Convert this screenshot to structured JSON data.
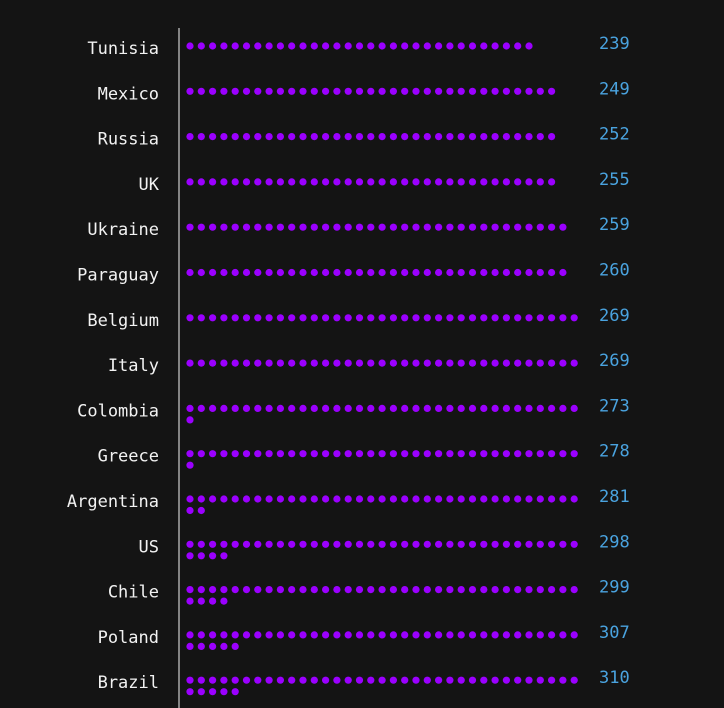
{
  "chart_data": {
    "type": "dot-bar",
    "categories": [
      "Tunisia",
      "Mexico",
      "Russia",
      "UK",
      "Ukraine",
      "Paraguay",
      "Belgium",
      "Italy",
      "Colombia",
      "Greece",
      "Argentina",
      "US",
      "Chile",
      "Poland",
      "Brazil"
    ],
    "values": [
      239,
      249,
      252,
      255,
      259,
      260,
      269,
      269,
      273,
      278,
      281,
      298,
      299,
      307,
      310
    ],
    "dots": [
      31,
      33,
      33,
      33,
      34,
      34,
      35,
      35,
      36,
      36,
      37,
      39,
      39,
      40,
      40
    ],
    "dots_per_row": 35,
    "dot_color": "#9b00ff",
    "value_color": "#4aa3df",
    "label_color": "#f2f2f2",
    "background": "#141414",
    "axis_color": "#aaaaaa"
  }
}
